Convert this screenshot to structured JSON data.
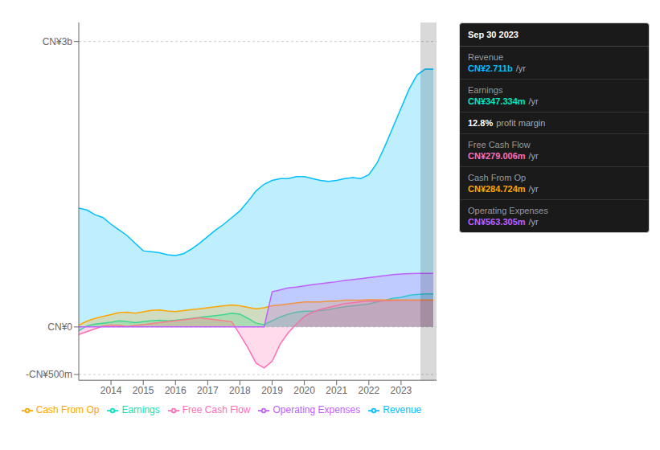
{
  "chart_data": {
    "type": "area",
    "x": [
      2013.0,
      2013.25,
      2013.5,
      2013.75,
      2014.0,
      2014.25,
      2014.5,
      2014.75,
      2015.0,
      2015.25,
      2015.5,
      2015.75,
      2016.0,
      2016.25,
      2016.5,
      2016.75,
      2017.0,
      2017.25,
      2017.5,
      2017.75,
      2018.0,
      2018.25,
      2018.5,
      2018.75,
      2019.0,
      2019.25,
      2019.5,
      2019.75,
      2020.0,
      2020.25,
      2020.5,
      2020.75,
      2021.0,
      2021.25,
      2021.5,
      2021.75,
      2022.0,
      2022.25,
      2022.5,
      2022.75,
      2023.0,
      2023.25,
      2023.5,
      2023.75,
      2024.0
    ],
    "xlim": [
      2013.0,
      2024.1
    ],
    "xticks": [
      2014,
      2015,
      2016,
      2017,
      2018,
      2019,
      2020,
      2021,
      2022,
      2023
    ],
    "ylim": [
      -560,
      3200
    ],
    "yticks": [
      {
        "value": -500,
        "label": "-CN¥500m"
      },
      {
        "value": 0,
        "label": "CN¥0"
      },
      {
        "value": 3000,
        "label": "CN¥3b"
      }
    ],
    "grid": true,
    "legend": "bottom",
    "shaded_range": [
      2023.6,
      2024.1
    ],
    "series": [
      {
        "name": "Revenue",
        "color": "#00bfff",
        "values": [
          1250,
          1230,
          1180,
          1150,
          1080,
          1020,
          960,
          880,
          800,
          790,
          780,
          760,
          750,
          770,
          820,
          880,
          950,
          1020,
          1080,
          1150,
          1220,
          1320,
          1430,
          1500,
          1540,
          1560,
          1560,
          1580,
          1580,
          1560,
          1540,
          1530,
          1540,
          1560,
          1570,
          1560,
          1600,
          1720,
          1900,
          2100,
          2300,
          2500,
          2650,
          2711,
          2711
        ]
      },
      {
        "name": "Earnings",
        "color": "#00e5c0",
        "values": [
          -40,
          10,
          30,
          40,
          50,
          65,
          55,
          45,
          55,
          65,
          70,
          65,
          70,
          80,
          90,
          100,
          110,
          120,
          130,
          145,
          135,
          90,
          40,
          25,
          65,
          105,
          135,
          155,
          165,
          165,
          172,
          182,
          200,
          212,
          222,
          232,
          242,
          262,
          280,
          302,
          312,
          332,
          342,
          347,
          347
        ]
      },
      {
        "name": "Free Cash Flow",
        "color": "#ff6eb4",
        "values": [
          -80,
          -50,
          -20,
          10,
          20,
          15,
          5,
          15,
          25,
          35,
          45,
          55,
          65,
          75,
          85,
          95,
          85,
          75,
          65,
          55,
          -80,
          -220,
          -380,
          -430,
          -360,
          -180,
          -60,
          30,
          110,
          155,
          185,
          205,
          225,
          245,
          255,
          265,
          272,
          272,
          276,
          278,
          279,
          280,
          279,
          279,
          279
        ]
      },
      {
        "name": "Cash From Op",
        "color": "#ffa500",
        "values": [
          20,
          60,
          90,
          110,
          130,
          150,
          155,
          145,
          160,
          175,
          178,
          168,
          162,
          172,
          182,
          192,
          202,
          212,
          222,
          232,
          222,
          205,
          192,
          202,
          222,
          232,
          242,
          252,
          262,
          262,
          262,
          272,
          272,
          282,
          282,
          282,
          286,
          286,
          284,
          283,
          285,
          285,
          285,
          284,
          284
        ]
      },
      {
        "name": "Operating Expenses",
        "color": "#bf5fff",
        "values": [
          0,
          0,
          0,
          0,
          0,
          0,
          0,
          0,
          0,
          0,
          0,
          0,
          0,
          0,
          0,
          0,
          0,
          0,
          0,
          0,
          0,
          0,
          0,
          0,
          370,
          390,
          410,
          420,
          432,
          445,
          455,
          465,
          475,
          488,
          498,
          508,
          518,
          528,
          540,
          550,
          556,
          560,
          562,
          563,
          563
        ]
      }
    ],
    "annotations": {
      "title": "Sep 30 2023",
      "rows": [
        {
          "label": "Revenue",
          "value": "CN¥2.711b",
          "suffix": "/yr",
          "color": "#00bfff"
        },
        {
          "label": "Earnings",
          "value": "CN¥347.334m",
          "suffix": "/yr",
          "color": "#00e5c0"
        },
        {
          "value": "12.8%",
          "suffix": "profit margin",
          "color": "#ffffff"
        },
        {
          "label": "Free Cash Flow",
          "value": "CN¥279.006m",
          "suffix": "/yr",
          "color": "#ff6eb4"
        },
        {
          "label": "Cash From Op",
          "value": "CN¥284.724m",
          "suffix": "/yr",
          "color": "#ffa500"
        },
        {
          "label": "Operating Expenses",
          "value": "CN¥563.305m",
          "suffix": "/yr",
          "color": "#bf5fff"
        }
      ]
    }
  }
}
